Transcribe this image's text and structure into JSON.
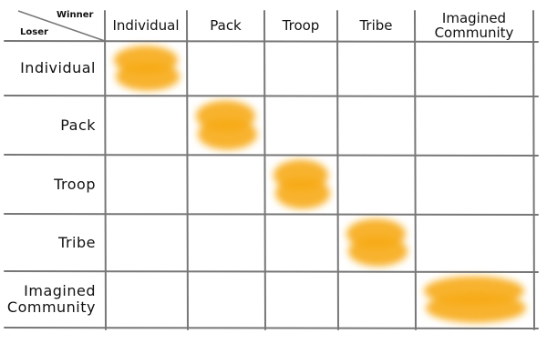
{
  "header": {
    "winner": "Winner",
    "loser": "Loser"
  },
  "columns": [
    "Individual",
    "Pack",
    "Troop",
    "Tribe",
    "Imagined Community"
  ],
  "rows": [
    "Individual",
    "Pack",
    "Troop",
    "Tribe",
    "Imagined Community"
  ]
}
